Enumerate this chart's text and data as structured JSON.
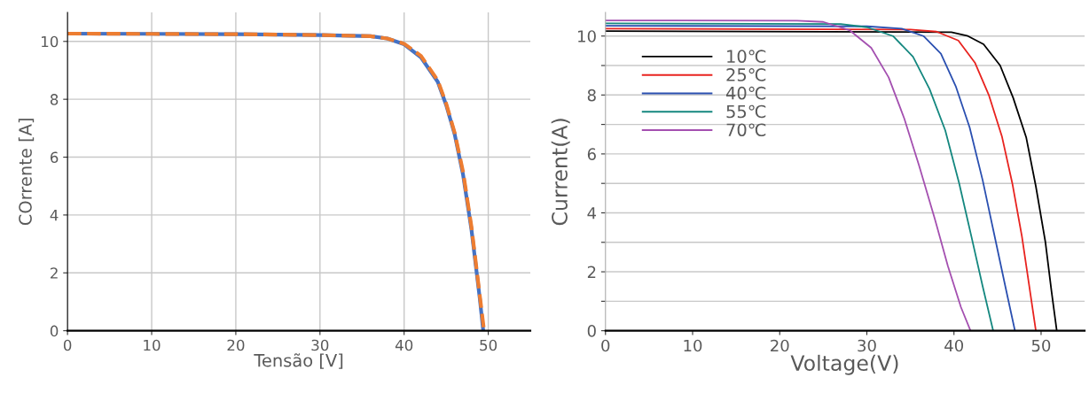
{
  "chart_data": [
    {
      "type": "line",
      "xlabel": "Tensão [V]",
      "ylabel": "COrrente [A]",
      "xlim": [
        0,
        55
      ],
      "xticks": [
        0,
        10,
        20,
        30,
        40,
        50
      ],
      "ylim": [
        0,
        11
      ],
      "yticks": [
        0,
        2,
        4,
        6,
        8,
        10
      ],
      "grid": true,
      "legend": false,
      "series": [
        {
          "color": "#4472c4",
          "line_style": "solid",
          "x": [
            0,
            10,
            20,
            30,
            36,
            38,
            40,
            42,
            44,
            45,
            46,
            47,
            48,
            49,
            49.4
          ],
          "values": [
            10.27,
            10.26,
            10.25,
            10.22,
            10.18,
            10.1,
            9.9,
            9.45,
            8.6,
            7.8,
            6.8,
            5.4,
            3.5,
            1.1,
            0
          ]
        },
        {
          "color": "#ed7d31",
          "line_style": "dashed",
          "x": [
            0,
            10,
            20,
            30,
            36,
            38,
            40,
            42,
            44,
            45,
            46,
            47,
            48,
            49,
            49.5
          ],
          "values": [
            10.27,
            10.26,
            10.25,
            10.22,
            10.18,
            10.1,
            9.92,
            9.5,
            8.65,
            7.85,
            6.85,
            5.5,
            3.6,
            1.2,
            0
          ]
        }
      ]
    },
    {
      "type": "line",
      "xlabel": "Voltage(V)",
      "ylabel": "Current(A)",
      "xlim": [
        0,
        55
      ],
      "xticks": [
        0,
        10,
        20,
        30,
        40,
        50
      ],
      "ylim": [
        0,
        10.8
      ],
      "yticks": [
        0,
        {
          "value": 1,
          "label": null
        },
        2,
        {
          "value": 3,
          "label": null
        },
        4,
        {
          "value": 5,
          "label": null
        },
        6,
        {
          "value": 7,
          "label": null
        },
        8,
        {
          "value": 9,
          "label": null
        },
        10
      ],
      "grid": "y",
      "legend": "top left",
      "series": [
        {
          "name": "10℃",
          "color": "#000000",
          "x": [
            0,
            39.7,
            41.6,
            43.4,
            45.3,
            46.8,
            48.3,
            49.4,
            50.5,
            51.2,
            51.8
          ],
          "values": [
            10.17,
            10.13,
            10.0,
            9.72,
            9.0,
            7.9,
            6.55,
            4.9,
            3.0,
            1.33,
            0
          ]
        },
        {
          "name": "25℃",
          "color": "#e8231f",
          "x": [
            0,
            35,
            38,
            40.5,
            42.4,
            44,
            45.5,
            46.7,
            47.8,
            48.6,
            49.4
          ],
          "values": [
            10.25,
            10.22,
            10.15,
            9.85,
            9.1,
            8.0,
            6.6,
            5.0,
            3.2,
            1.6,
            0
          ]
        },
        {
          "name": "40℃",
          "color": "#2a4fb0",
          "x": [
            0,
            30,
            34,
            36.5,
            38.5,
            40.2,
            41.8,
            43.3,
            44.6,
            45.9,
            47.0
          ],
          "values": [
            10.35,
            10.33,
            10.25,
            10.0,
            9.4,
            8.3,
            6.9,
            5.1,
            3.3,
            1.5,
            0
          ]
        },
        {
          "name": "55℃",
          "color": "#14877f",
          "x": [
            0,
            27,
            30,
            33,
            35.3,
            37.2,
            39,
            40.6,
            42,
            43.3,
            44.5
          ],
          "values": [
            10.43,
            10.41,
            10.3,
            10.0,
            9.3,
            8.2,
            6.8,
            5.0,
            3.2,
            1.5,
            0
          ]
        },
        {
          "name": "70℃",
          "color": "#a450b0",
          "x": [
            0,
            22,
            25,
            28,
            30.5,
            32.5,
            34.3,
            36,
            37.8,
            39.3,
            40.8,
            41.9
          ],
          "values": [
            10.53,
            10.52,
            10.48,
            10.2,
            9.6,
            8.6,
            7.2,
            5.6,
            3.8,
            2.2,
            0.8,
            0
          ]
        }
      ]
    }
  ]
}
